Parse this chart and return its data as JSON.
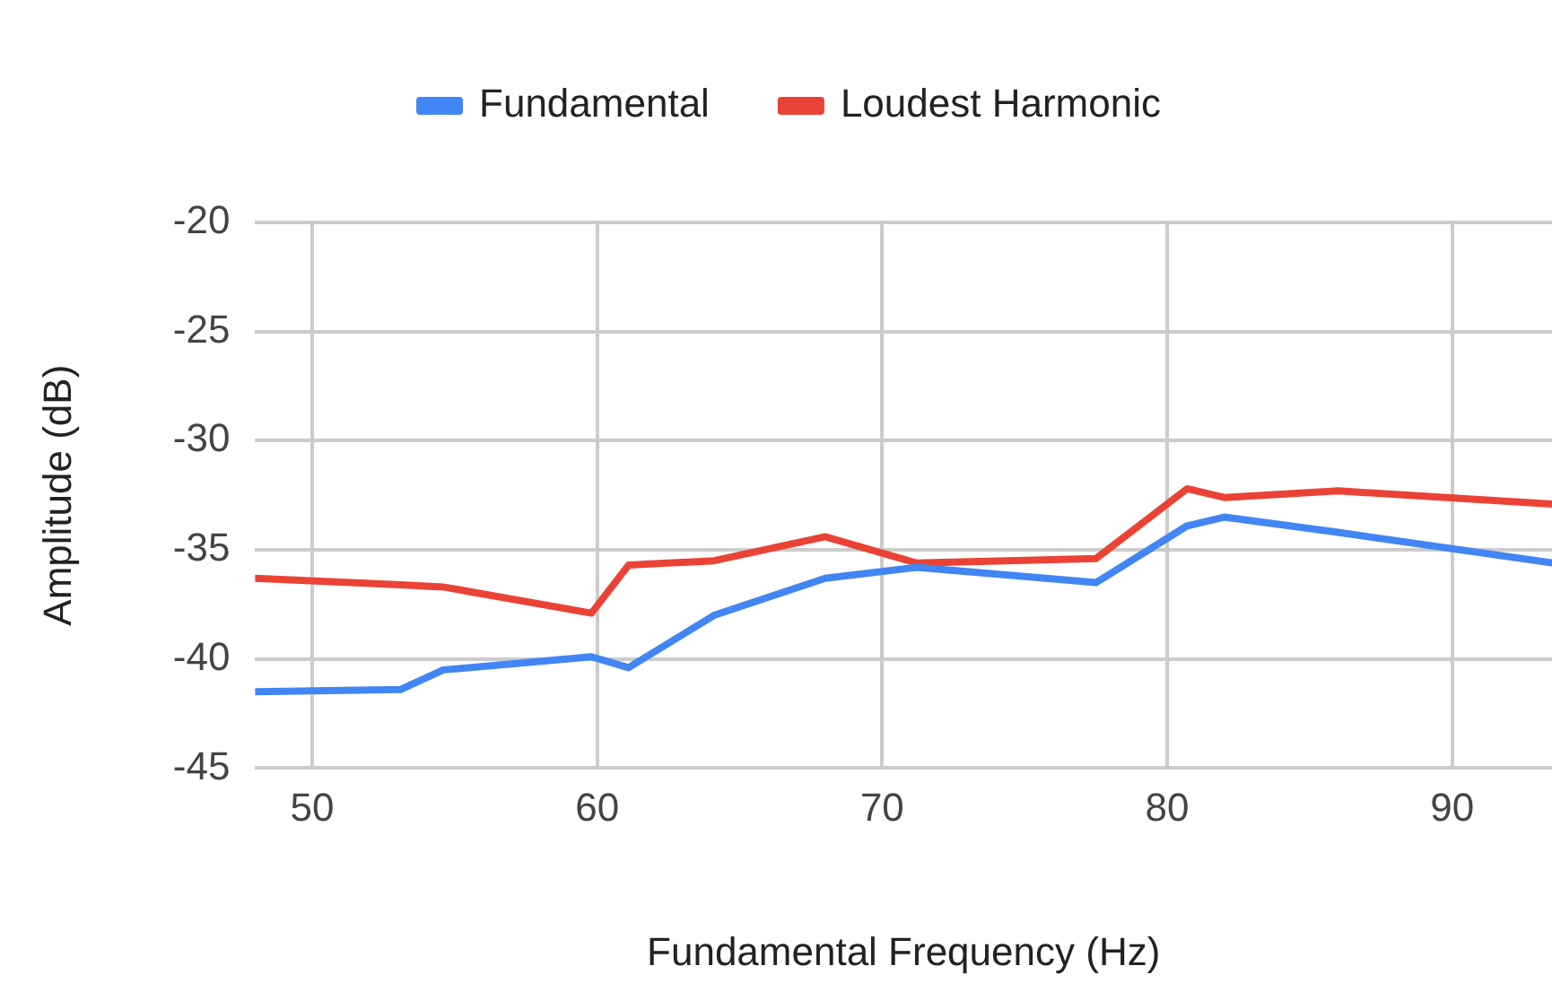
{
  "chart_data": {
    "type": "line",
    "xlabel": "Fundamental Frequency (Hz)",
    "ylabel": "Amplitude (dB)",
    "x": [
      48,
      53.1,
      54.6,
      59.8,
      61.1,
      64.1,
      68.0,
      71.2,
      77.5,
      80.7,
      82.0,
      86.0,
      93.5
    ],
    "series": [
      {
        "name": "Fundamental",
        "color": "#4285f4",
        "values": [
          -41.5,
          -41.4,
          -40.5,
          -39.9,
          -40.4,
          -38.0,
          -36.3,
          -35.8,
          -36.5,
          -33.9,
          -33.5,
          -34.2,
          -35.6
        ]
      },
      {
        "name": "Loudest Harmonic",
        "color": "#ea4335",
        "values": [
          -36.3,
          -36.6,
          -36.7,
          -37.9,
          -35.7,
          -35.5,
          -34.4,
          -35.6,
          -35.4,
          -32.2,
          -32.6,
          -32.3,
          -32.9
        ]
      }
    ],
    "xlim": [
      48,
      93.5
    ],
    "xticks": [
      50,
      60,
      70,
      80,
      90
    ],
    "ylim": [
      -45,
      -20
    ],
    "yticks": [
      -45,
      -40,
      -35,
      -30,
      -25,
      -20
    ],
    "grid": true,
    "legend": "top",
    "marker": "none",
    "line_style": "solid"
  }
}
